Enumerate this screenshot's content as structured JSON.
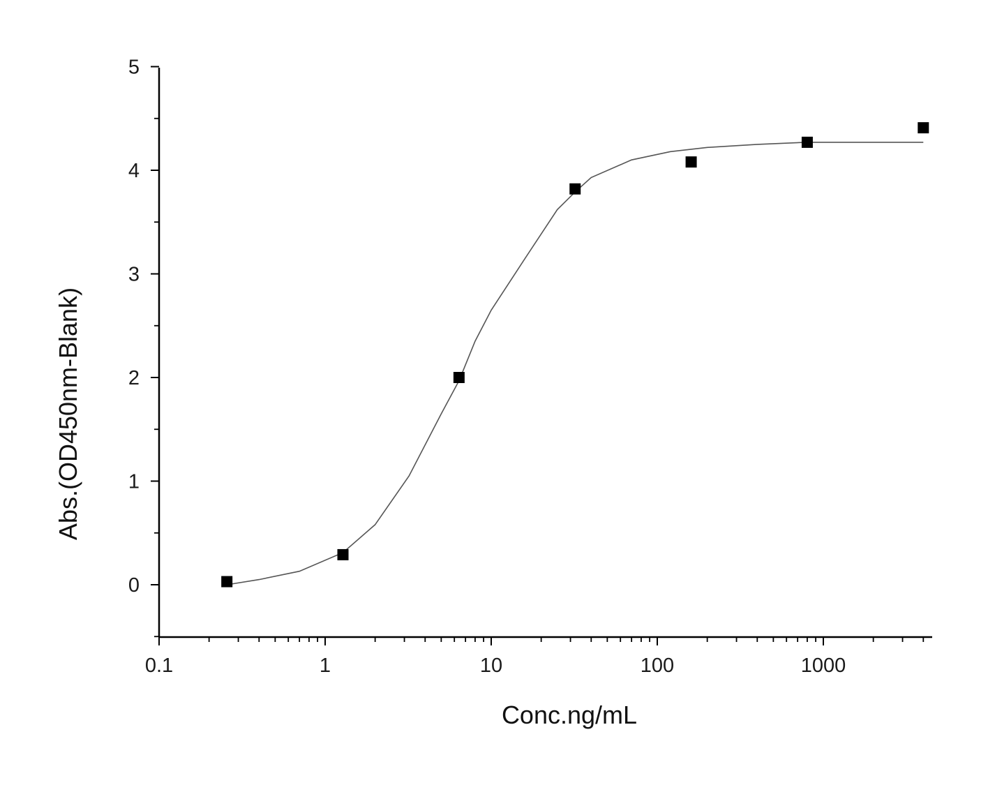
{
  "chart_data": {
    "type": "scatter",
    "title": "",
    "xlabel": "Conc.ng/mL",
    "ylabel": "Abs.(OD450nm-Blank)",
    "x_scale": "log",
    "xlim": [
      0.1,
      5000
    ],
    "ylim": [
      -0.5,
      5
    ],
    "x_ticks": [
      {
        "value": 0.1,
        "label": "0.1"
      },
      {
        "value": 1,
        "label": "1"
      },
      {
        "value": 10,
        "label": "10"
      },
      {
        "value": 100,
        "label": "100"
      },
      {
        "value": 1000,
        "label": "1000"
      }
    ],
    "y_ticks": [
      {
        "value": 0,
        "label": "0"
      },
      {
        "value": 1,
        "label": "1"
      },
      {
        "value": 2,
        "label": "2"
      },
      {
        "value": 3,
        "label": "3"
      },
      {
        "value": 4,
        "label": "4"
      },
      {
        "value": 5,
        "label": "5"
      }
    ],
    "grid": false,
    "legend": "none",
    "series": [
      {
        "marker": "square",
        "color": "#000000",
        "points": [
          {
            "x": 0.256,
            "y": 0.03
          },
          {
            "x": 1.28,
            "y": 0.29
          },
          {
            "x": 6.4,
            "y": 2.0
          },
          {
            "x": 32,
            "y": 3.82
          },
          {
            "x": 160,
            "y": 4.08
          },
          {
            "x": 800,
            "y": 4.27
          },
          {
            "x": 4000,
            "y": 4.41
          }
        ]
      }
    ],
    "fit_curve": {
      "color": "#555555",
      "points": [
        {
          "x": 0.256,
          "y": 0.0
        },
        {
          "x": 0.4,
          "y": 0.05
        },
        {
          "x": 0.7,
          "y": 0.13
        },
        {
          "x": 1.28,
          "y": 0.31
        },
        {
          "x": 2,
          "y": 0.58
        },
        {
          "x": 3.2,
          "y": 1.05
        },
        {
          "x": 5,
          "y": 1.65
        },
        {
          "x": 6.4,
          "y": 1.97
        },
        {
          "x": 8,
          "y": 2.35
        },
        {
          "x": 10,
          "y": 2.65
        },
        {
          "x": 16,
          "y": 3.15
        },
        {
          "x": 25,
          "y": 3.62
        },
        {
          "x": 32,
          "y": 3.79
        },
        {
          "x": 40,
          "y": 3.93
        },
        {
          "x": 70,
          "y": 4.1
        },
        {
          "x": 120,
          "y": 4.18
        },
        {
          "x": 200,
          "y": 4.22
        },
        {
          "x": 400,
          "y": 4.25
        },
        {
          "x": 800,
          "y": 4.27
        },
        {
          "x": 4000,
          "y": 4.27
        }
      ]
    }
  }
}
